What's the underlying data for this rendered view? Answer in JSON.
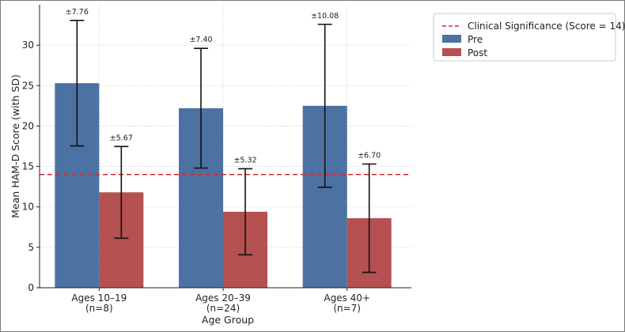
{
  "chart_data": {
    "type": "bar",
    "title": "",
    "xlabel": "Age Group",
    "ylabel": "Mean HAM-D Score (with SD)",
    "ylim": [
      0,
      35
    ],
    "yticks": [
      0,
      5,
      10,
      15,
      20,
      25,
      30
    ],
    "grid": true,
    "categories": [
      {
        "line1": "Ages 10–19",
        "line2": "(n=8)"
      },
      {
        "line1": "Ages 20–39",
        "line2": "(n=24)"
      },
      {
        "line1": "Ages 40+",
        "line2": "(n=7)"
      }
    ],
    "series": [
      {
        "name": "Pre",
        "color": "#4c72a3",
        "values": [
          25.3,
          22.2,
          22.5
        ],
        "sd": [
          7.76,
          7.4,
          10.08
        ],
        "sd_labels": [
          "±7.76",
          "±7.40",
          "±10.08"
        ]
      },
      {
        "name": "Post",
        "color": "#b55151",
        "values": [
          11.8,
          9.4,
          8.6
        ],
        "sd": [
          5.67,
          5.32,
          6.7
        ],
        "sd_labels": [
          "±5.67",
          "±5.32",
          "±6.70"
        ]
      }
    ],
    "reference_line": {
      "label": "Clinical Significance (Score = 14)",
      "value": 14,
      "color": "#d62728"
    },
    "legend_position": "top-right"
  }
}
